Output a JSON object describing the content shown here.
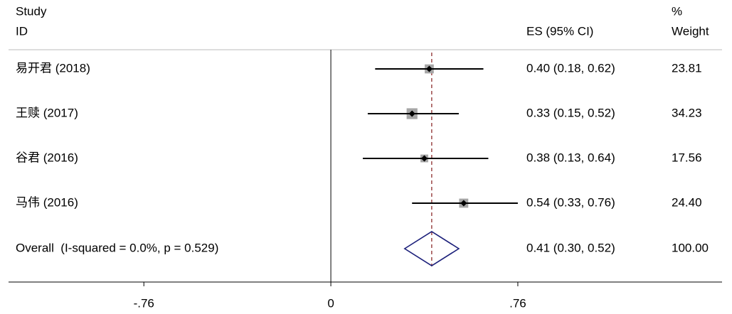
{
  "chart_data": {
    "type": "forest",
    "header": {
      "study": "Study",
      "id": "ID",
      "es": "ES (95% CI)",
      "pct": "%",
      "weight": "Weight"
    },
    "studies": [
      {
        "name": "易开君 (2018)",
        "es": 0.4,
        "lo": 0.18,
        "hi": 0.62,
        "weight": 23.81,
        "es_label": "0.40 (0.18, 0.62)",
        "weight_label": "23.81"
      },
      {
        "name": "王赎 (2017)",
        "es": 0.33,
        "lo": 0.15,
        "hi": 0.52,
        "weight": 34.23,
        "es_label": "0.33 (0.15, 0.52)",
        "weight_label": "34.23"
      },
      {
        "name": "谷君 (2016)",
        "es": 0.38,
        "lo": 0.13,
        "hi": 0.64,
        "weight": 17.56,
        "es_label": "0.38 (0.13, 0.64)",
        "weight_label": "17.56"
      },
      {
        "name": "马伟 (2016)",
        "es": 0.54,
        "lo": 0.33,
        "hi": 0.76,
        "weight": 24.4,
        "es_label": "0.54 (0.33, 0.76)",
        "weight_label": "24.40"
      }
    ],
    "overall": {
      "name": "Overall  (I-squared = 0.0%, p = 0.529)",
      "es": 0.41,
      "lo": 0.3,
      "hi": 0.52,
      "weight": 100,
      "es_label": "0.41 (0.30, 0.52)",
      "weight_label": "100.00"
    },
    "null_line": 0,
    "xlim": [
      -1.31,
      1.59
    ],
    "xticks": [
      {
        "value": -0.76,
        "label": "-.76"
      },
      0,
      {
        "value": 0.76,
        "label": ".76"
      }
    ],
    "colors": {
      "ci": "#000000",
      "box": "#a6a6a6",
      "point": "#000000",
      "overall_line": "#8b2b2b",
      "diamond": "#1b1f7a"
    }
  }
}
